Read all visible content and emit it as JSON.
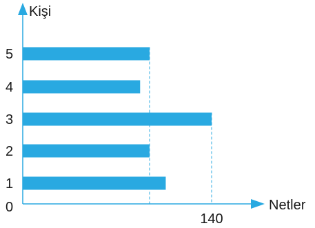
{
  "chart_data": {
    "type": "bar",
    "orientation": "horizontal",
    "categories": [
      "1",
      "2",
      "3",
      "4",
      "5"
    ],
    "values": [
      106,
      94,
      140,
      87,
      94
    ],
    "xlabel": "Netler",
    "ylabel": "Kişi",
    "origin_label": "0",
    "x_tick_labels": [
      {
        "value": 140,
        "label": "140"
      }
    ],
    "xlim": [
      0,
      180
    ],
    "guide_lines_at": [
      94,
      140
    ],
    "grid": false,
    "legend": "none",
    "colors": {
      "bar": "#29a9e1",
      "axis": "#29a9e1",
      "text": "#1a1a1a"
    }
  }
}
